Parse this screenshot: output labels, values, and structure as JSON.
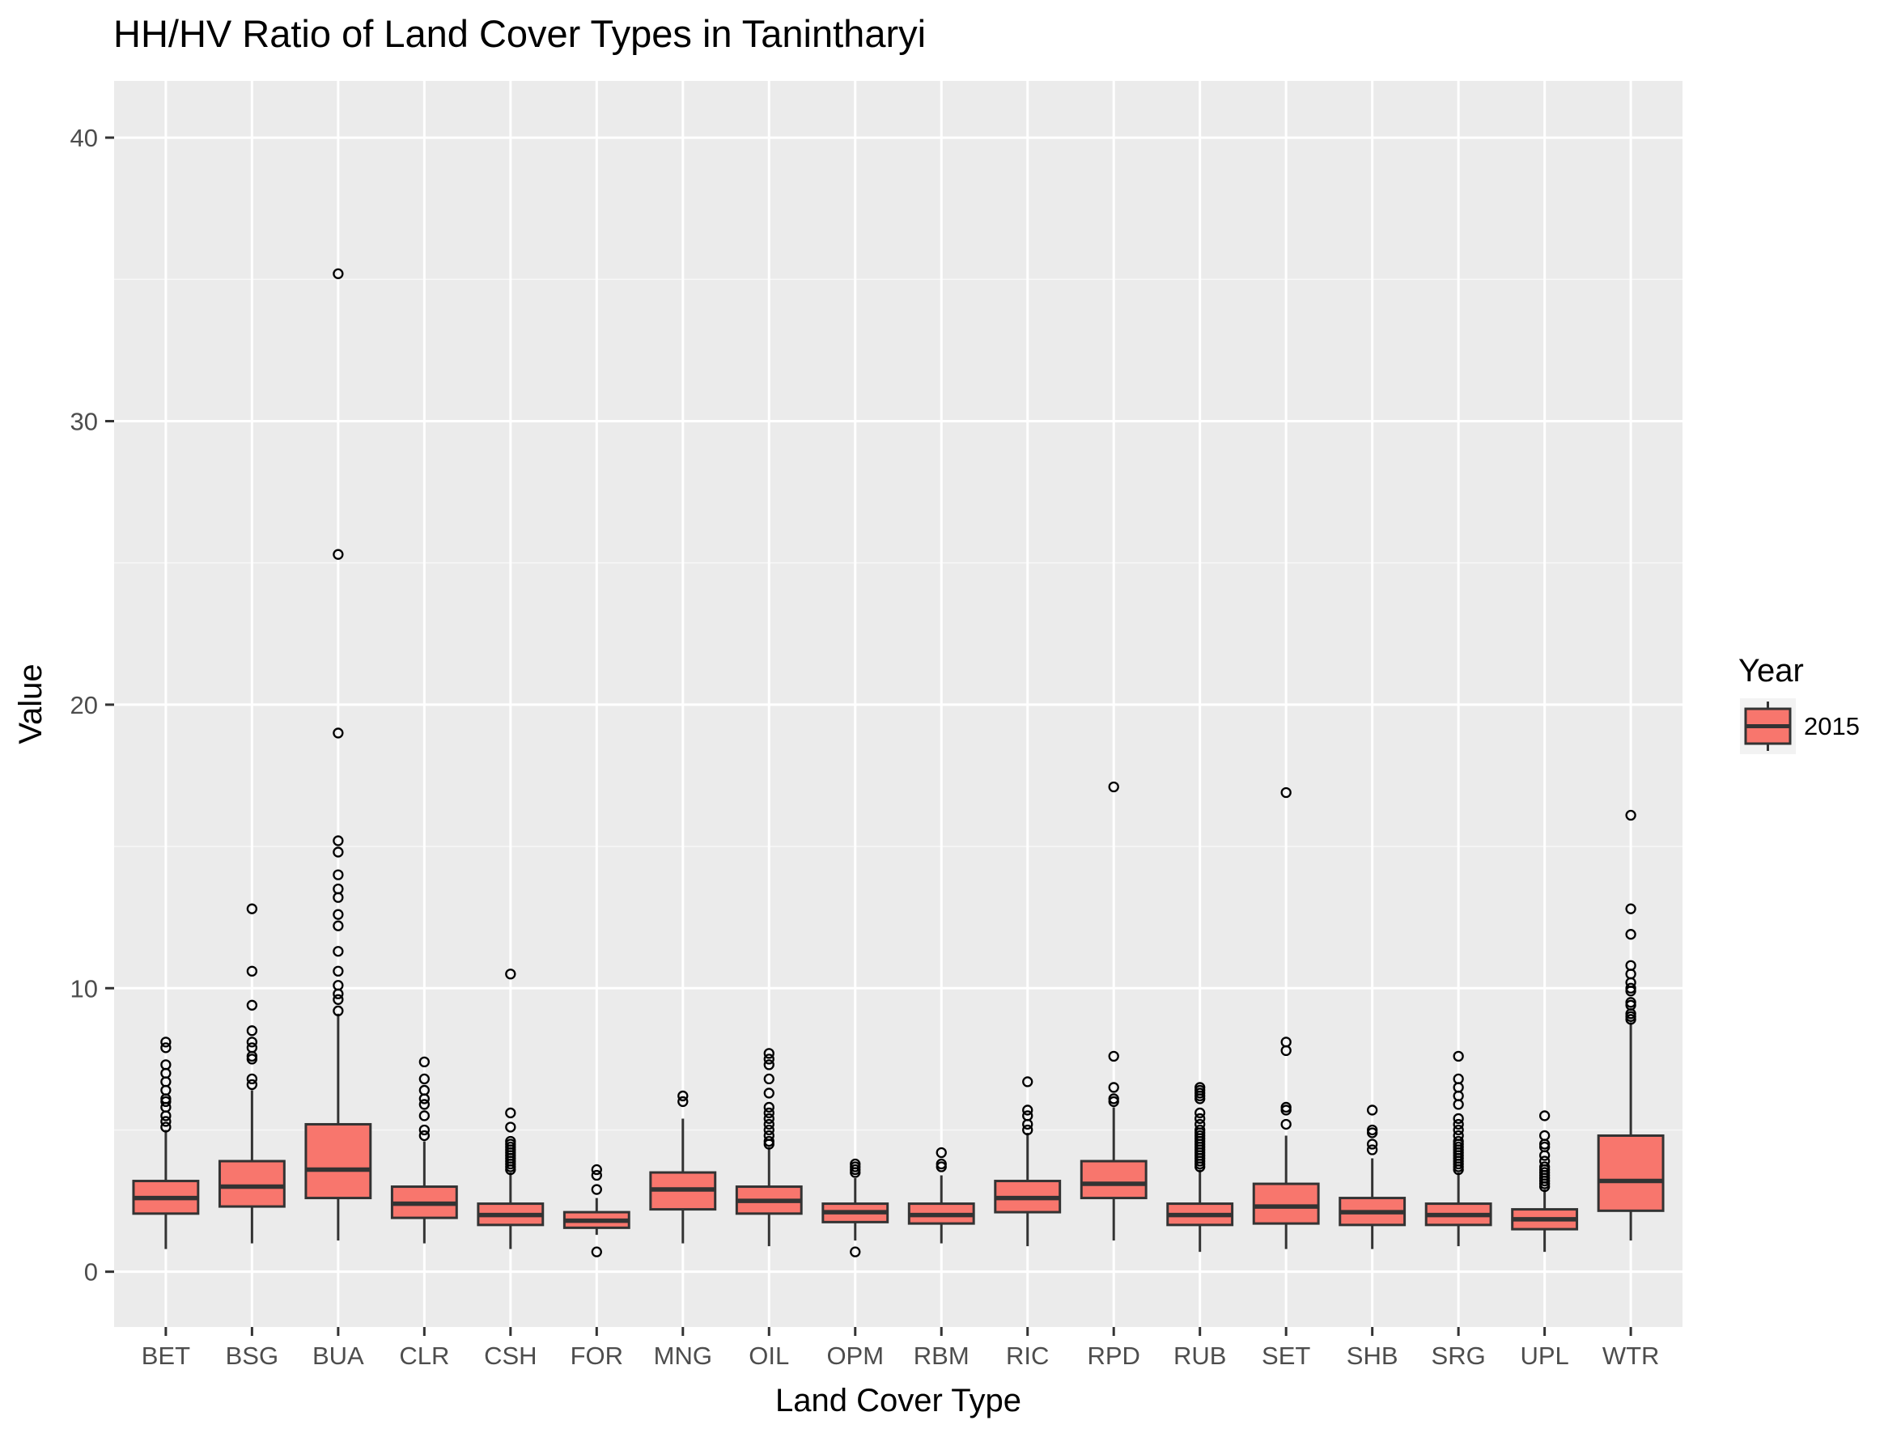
{
  "chart_data": {
    "type": "boxplot",
    "title": "HH/HV Ratio of Land Cover Types in Tanintharyi",
    "xlabel": "Land Cover Type",
    "ylabel": "Value",
    "ylim": [
      -1.95,
      42.0
    ],
    "y_ticks": [
      0,
      10,
      20,
      30,
      40
    ],
    "grid": true,
    "legend": {
      "title": "Year",
      "position": "right",
      "entries": [
        {
          "label": "2015",
          "color": "#F8766D"
        }
      ]
    },
    "fill_color": "#F8766D",
    "categories": [
      "BET",
      "BSG",
      "BUA",
      "CLR",
      "CSH",
      "FOR",
      "MNG",
      "OIL",
      "OPM",
      "RBM",
      "RIC",
      "RPD",
      "RUB",
      "SET",
      "SHB",
      "SRG",
      "UPL",
      "WTR"
    ],
    "series": [
      {
        "name": "2015",
        "boxes": [
          {
            "category": "BET",
            "whisker_low": 0.8,
            "q1": 2.05,
            "median": 2.6,
            "q3": 3.2,
            "whisker_high": 5.0,
            "outliers": [
              5.1,
              5.3,
              5.5,
              5.8,
              6.0,
              6.1,
              6.4,
              6.7,
              7.0,
              7.3,
              7.9,
              8.1
            ]
          },
          {
            "category": "BSG",
            "whisker_low": 1.0,
            "q1": 2.3,
            "median": 3.0,
            "q3": 3.9,
            "whisker_high": 6.4,
            "outliers": [
              6.6,
              6.8,
              7.5,
              7.6,
              7.9,
              8.1,
              8.5,
              9.4,
              10.6,
              12.8
            ]
          },
          {
            "category": "BUA",
            "whisker_low": 1.1,
            "q1": 2.6,
            "median": 3.6,
            "q3": 5.2,
            "whisker_high": 9.1,
            "outliers": [
              9.2,
              9.6,
              9.8,
              10.1,
              10.6,
              11.3,
              12.2,
              12.6,
              13.2,
              13.5,
              14.0,
              14.8,
              15.2,
              19.0,
              25.3,
              35.2
            ]
          },
          {
            "category": "CLR",
            "whisker_low": 1.0,
            "q1": 1.9,
            "median": 2.4,
            "q3": 3.0,
            "whisker_high": 4.6,
            "outliers": [
              4.8,
              5.0,
              5.5,
              5.9,
              6.1,
              6.4,
              6.8,
              7.4
            ]
          },
          {
            "category": "CSH",
            "whisker_low": 0.8,
            "q1": 1.65,
            "median": 2.0,
            "q3": 2.4,
            "whisker_high": 3.5,
            "outliers": [
              3.6,
              3.7,
              3.8,
              3.9,
              4.0,
              4.1,
              4.2,
              4.3,
              4.4,
              4.5,
              4.6,
              5.1,
              5.6,
              10.5
            ]
          },
          {
            "category": "FOR",
            "whisker_low": 1.3,
            "q1": 1.55,
            "median": 1.8,
            "q3": 2.1,
            "whisker_high": 2.6,
            "outliers": [
              0.7,
              2.9,
              3.4,
              3.6
            ]
          },
          {
            "category": "MNG",
            "whisker_low": 1.0,
            "q1": 2.2,
            "median": 2.9,
            "q3": 3.5,
            "whisker_high": 5.4,
            "outliers": [
              6.0,
              6.2
            ]
          },
          {
            "category": "OIL",
            "whisker_low": 0.9,
            "q1": 2.05,
            "median": 2.5,
            "q3": 3.0,
            "whisker_high": 4.4,
            "outliers": [
              4.5,
              4.6,
              4.8,
              5.0,
              5.2,
              5.4,
              5.6,
              5.8,
              6.3,
              6.8,
              7.3,
              7.5,
              7.7
            ]
          },
          {
            "category": "OPM",
            "whisker_low": 1.1,
            "q1": 1.75,
            "median": 2.1,
            "q3": 2.4,
            "whisker_high": 3.3,
            "outliers": [
              0.7,
              3.5,
              3.6,
              3.7,
              3.8
            ]
          },
          {
            "category": "RBM",
            "whisker_low": 1.0,
            "q1": 1.7,
            "median": 2.0,
            "q3": 2.4,
            "whisker_high": 3.4,
            "outliers": [
              3.7,
              3.8,
              4.2
            ]
          },
          {
            "category": "RIC",
            "whisker_low": 0.9,
            "q1": 2.1,
            "median": 2.6,
            "q3": 3.2,
            "whisker_high": 4.9,
            "outliers": [
              5.0,
              5.2,
              5.5,
              5.7,
              6.7
            ]
          },
          {
            "category": "RPD",
            "whisker_low": 1.1,
            "q1": 2.6,
            "median": 3.1,
            "q3": 3.9,
            "whisker_high": 5.8,
            "outliers": [
              6.0,
              6.1,
              6.5,
              7.6,
              17.1
            ]
          },
          {
            "category": "RUB",
            "whisker_low": 0.7,
            "q1": 1.65,
            "median": 2.0,
            "q3": 2.4,
            "whisker_high": 3.6,
            "outliers": [
              3.7,
              3.8,
              3.9,
              4.0,
              4.1,
              4.2,
              4.3,
              4.4,
              4.5,
              4.6,
              4.7,
              4.8,
              4.9,
              5.0,
              5.2,
              5.4,
              5.6,
              6.1,
              6.2,
              6.3,
              6.4,
              6.5
            ]
          },
          {
            "category": "SET",
            "whisker_low": 0.8,
            "q1": 1.7,
            "median": 2.3,
            "q3": 3.1,
            "whisker_high": 4.8,
            "outliers": [
              5.2,
              5.7,
              5.8,
              7.8,
              8.1,
              16.9
            ]
          },
          {
            "category": "SHB",
            "whisker_low": 0.8,
            "q1": 1.65,
            "median": 2.1,
            "q3": 2.6,
            "whisker_high": 4.0,
            "outliers": [
              4.3,
              4.5,
              4.9,
              5.0,
              5.7
            ]
          },
          {
            "category": "SRG",
            "whisker_low": 0.9,
            "q1": 1.65,
            "median": 2.0,
            "q3": 2.4,
            "whisker_high": 3.5,
            "outliers": [
              3.6,
              3.7,
              3.8,
              3.9,
              4.0,
              4.1,
              4.2,
              4.3,
              4.4,
              4.5,
              4.6,
              4.8,
              5.0,
              5.2,
              5.4,
              5.9,
              6.2,
              6.5,
              6.8,
              7.6
            ]
          },
          {
            "category": "UPL",
            "whisker_low": 0.7,
            "q1": 1.5,
            "median": 1.85,
            "q3": 2.2,
            "whisker_high": 2.9,
            "outliers": [
              3.0,
              3.1,
              3.2,
              3.3,
              3.4,
              3.5,
              3.6,
              3.7,
              3.9,
              4.1,
              4.4,
              4.5,
              4.8,
              5.5
            ]
          },
          {
            "category": "WTR",
            "whisker_low": 1.1,
            "q1": 2.15,
            "median": 3.2,
            "q3": 4.8,
            "whisker_high": 8.8,
            "outliers": [
              8.9,
              9.0,
              9.1,
              9.4,
              9.5,
              9.9,
              10.0,
              10.2,
              10.5,
              10.8,
              11.9,
              12.8,
              16.1
            ]
          }
        ]
      }
    ]
  }
}
